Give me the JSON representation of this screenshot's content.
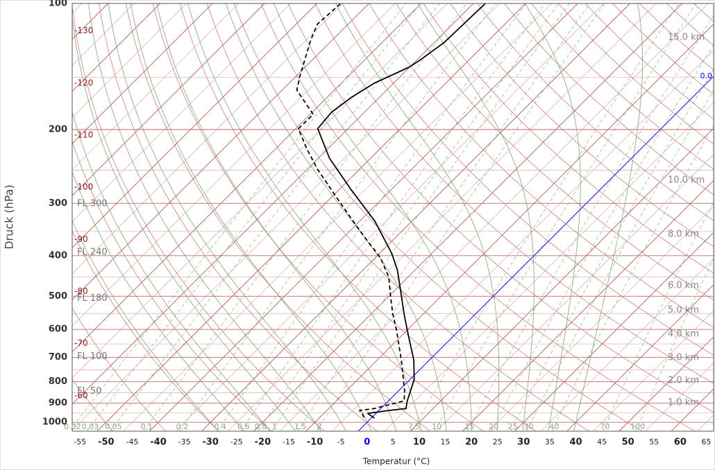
{
  "chart_data": {
    "type": "skewt",
    "xlabel": "Temperatur (°C)",
    "ylabel": "Druck (hPa)",
    "xlim": [
      -56.5,
      66.4
    ],
    "ylim": [
      1050,
      100
    ],
    "log_y": true,
    "xticks": [
      -55,
      -50,
      -45,
      -40,
      -35,
      -30,
      -25,
      -20,
      -15,
      -10,
      -5,
      0,
      5,
      10,
      15,
      20,
      25,
      30,
      35,
      40,
      45,
      50,
      55,
      60,
      65
    ],
    "yticks": [
      100,
      200,
      300,
      400,
      500,
      600,
      700,
      800,
      900,
      1000
    ],
    "series": [
      {
        "color": "#000000",
        "dash": false,
        "pressure": [
          977,
          952,
          937,
          927,
          889,
          790,
          710,
          633,
          554,
          500,
          433,
          395,
          331,
          277,
          234,
          199,
          182,
          168,
          155,
          142,
          136,
          124,
          100
        ],
        "values": [
          0.6,
          -1.6,
          1.9,
          4.8,
          3.6,
          0.8,
          -3.0,
          -7.9,
          -13.5,
          -17.6,
          -23.4,
          -27.7,
          -37.1,
          -48.0,
          -57.9,
          -65.8,
          -66.3,
          -65.4,
          -63.7,
          -60.1,
          -59.3,
          -58.1,
          -57.7
        ]
      },
      {
        "color": "#000000",
        "dash": true,
        "pressure": [
          974,
          955,
          937,
          927,
          889,
          842,
          710,
          603,
          548,
          500,
          449,
          404,
          365,
          329,
          299,
          274,
          249,
          222,
          199,
          184,
          161,
          149,
          122,
          112,
          100
        ],
        "values": [
          -1.5,
          -2.5,
          -3.7,
          -1.2,
          3.0,
          1.2,
          -5.4,
          -12.0,
          -16.1,
          -19.7,
          -23.8,
          -29.1,
          -35.4,
          -41.6,
          -47.3,
          -52.4,
          -58.0,
          -64.1,
          -69.5,
          -69.4,
          -77.2,
          -79.3,
          -84.2,
          -85.9,
          -85.4
        ]
      }
    ],
    "freezing_isotherm": {
      "value": 0,
      "label": "0.0",
      "color": "#0000ff"
    },
    "isotherm_labels": [
      -130,
      -120,
      -110,
      -100,
      -90,
      -80,
      -70,
      -60
    ],
    "flight_levels": [
      {
        "value": 300,
        "label": "FL 300"
      },
      {
        "value": 240,
        "label": "FL 240"
      },
      {
        "value": 180,
        "label": "FL 180"
      },
      {
        "value": 100,
        "label": "FL 100"
      },
      {
        "value": 50,
        "label": "FL 50"
      }
    ],
    "heights_km": [
      {
        "value": 15,
        "label": "15.0 km"
      },
      {
        "value": 10,
        "label": "10.0 km"
      },
      {
        "value": 8,
        "label": "8.0 km"
      },
      {
        "value": 6,
        "label": "6.0 km"
      },
      {
        "value": 5,
        "label": "5.0 km"
      },
      {
        "value": 4,
        "label": "4.0 km"
      },
      {
        "value": 3,
        "label": "3.0 km"
      },
      {
        "value": 2,
        "label": "2.0 km"
      },
      {
        "value": 1,
        "label": "1.0 km"
      }
    ],
    "mixing_ratios": [
      0.02,
      0.03,
      0.05,
      0.1,
      0.2,
      0.4,
      0.6,
      0.8,
      1,
      1.5,
      2,
      7.5,
      10,
      15,
      20,
      25,
      30,
      40,
      70,
      100
    ]
  }
}
